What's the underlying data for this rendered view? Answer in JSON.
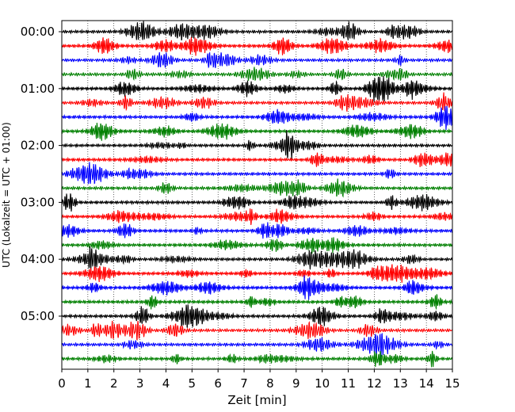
{
  "chart_data": {
    "type": "line",
    "subtype": "helicorder",
    "title": "",
    "xlabel": "Zeit  [min]",
    "ylabel": "UTC (Lokalzeit = UTC + 01:00)",
    "xlim": [
      0,
      15
    ],
    "x_ticks": [
      "0",
      "1",
      "2",
      "3",
      "4",
      "5",
      "6",
      "7",
      "8",
      "9",
      "10",
      "11",
      "12",
      "13",
      "14",
      "15"
    ],
    "y_ticks": [
      "00:00",
      "01:00",
      "02:00",
      "03:00",
      "04:00",
      "05:00"
    ],
    "trace_minutes": 15,
    "trace_count": 24,
    "trace_colors": [
      "#000000",
      "#ff0000",
      "#0000ff",
      "#008000"
    ],
    "grid": "vertical dotted at every minute",
    "legend": "none"
  }
}
